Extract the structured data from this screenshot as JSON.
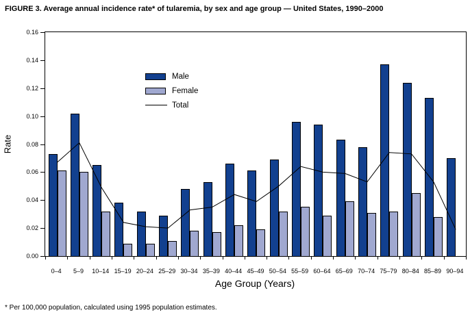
{
  "title": "FIGURE 3. Average annual incidence rate* of tularemia, by sex and age group — United States, 1990–2000",
  "footnote": "* Per 100,000 population, calculated using 1995 population estimates.",
  "colors": {
    "male": "#12408f",
    "female": "#a0a8d0",
    "total_line": "#000000",
    "axis": "#000000",
    "background": "#ffffff"
  },
  "legend": {
    "male_label": "Male",
    "female_label": "Female",
    "total_label": "Total"
  },
  "chart_data": {
    "type": "bar",
    "title": "FIGURE 3. Average annual incidence rate* of tularemia, by sex and age group — United States, 1990–2000",
    "xlabel": "Age Group (Years)",
    "ylabel": "Rate",
    "ylim": [
      0,
      0.16
    ],
    "ytick_step": 0.02,
    "yticklabels": [
      "0.00",
      "0.02",
      "0.04",
      "0.06",
      "0.08",
      "0.10",
      "0.12",
      "0.14",
      "0.16"
    ],
    "grid": false,
    "legend_position": "upper-left-inside",
    "categories": [
      "0–4",
      "5–9",
      "10–14",
      "15–19",
      "20–24",
      "25–29",
      "30–34",
      "35–39",
      "40–44",
      "45–49",
      "50–54",
      "55–59",
      "60–64",
      "65–69",
      "70–74",
      "75–79",
      "80–84",
      "85–89",
      "90–94"
    ],
    "series": [
      {
        "name": "Male",
        "type": "bar",
        "color": "#12408f",
        "values": [
          0.073,
          0.102,
          0.065,
          0.038,
          0.032,
          0.029,
          0.048,
          0.053,
          0.066,
          0.061,
          0.069,
          0.096,
          0.094,
          0.083,
          0.078,
          0.137,
          0.124,
          0.113,
          0.07
        ]
      },
      {
        "name": "Female",
        "type": "bar",
        "color": "#a0a8d0",
        "values": [
          0.061,
          0.06,
          0.032,
          0.009,
          0.009,
          0.011,
          0.018,
          0.017,
          0.022,
          0.019,
          0.032,
          0.035,
          0.029,
          0.039,
          0.031,
          0.032,
          0.045,
          0.028,
          0.0
        ]
      },
      {
        "name": "Total",
        "type": "line",
        "color": "#000000",
        "values": [
          0.067,
          0.081,
          0.049,
          0.024,
          0.021,
          0.02,
          0.033,
          0.035,
          0.044,
          0.039,
          0.05,
          0.064,
          0.06,
          0.059,
          0.053,
          0.074,
          0.073,
          0.053,
          0.019
        ]
      }
    ]
  }
}
